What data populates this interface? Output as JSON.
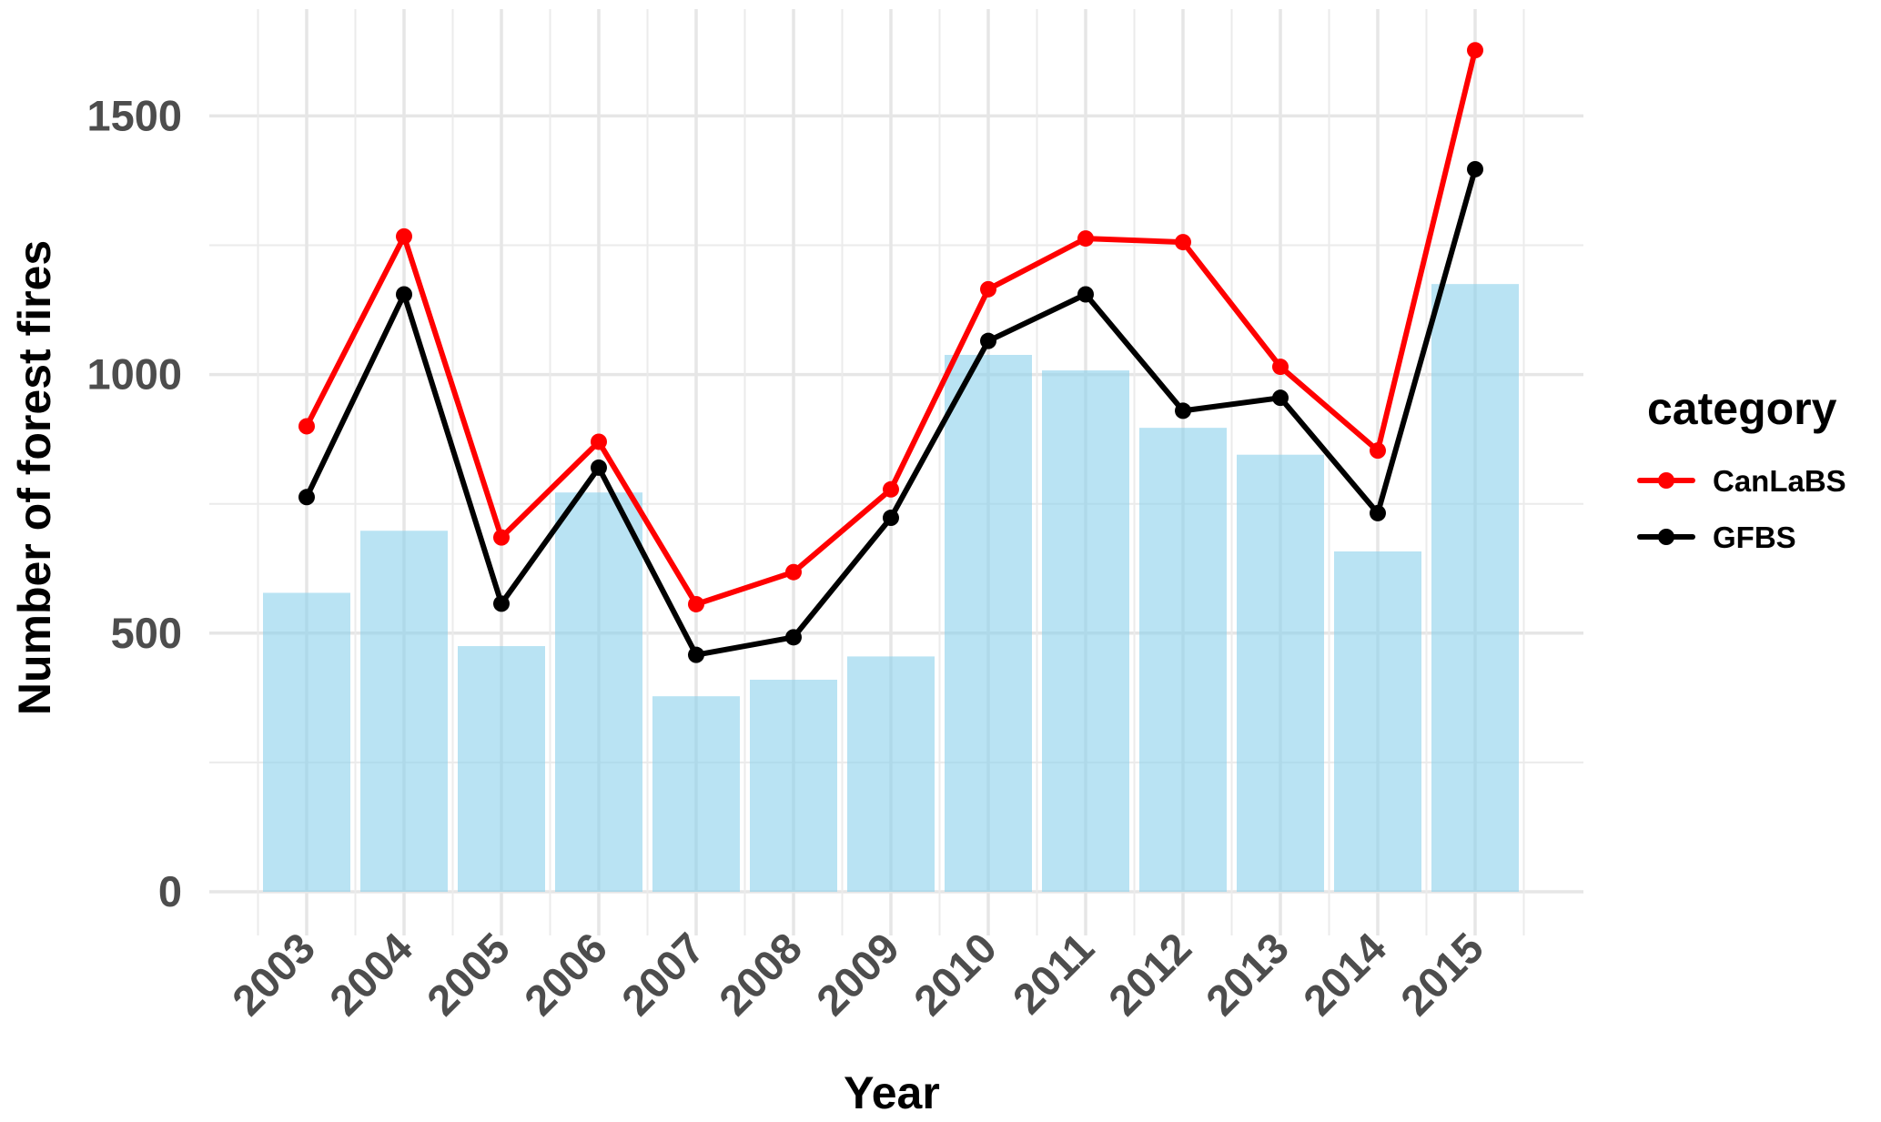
{
  "chart_data": {
    "type": "bar",
    "title": "",
    "xlabel": "Year",
    "ylabel": "Number of forest fires",
    "ylim": [
      -85,
      1700
    ],
    "yticks": [
      0,
      500,
      1000,
      1500
    ],
    "grid": true,
    "legend_position": "right",
    "legend_title": "category",
    "categories": [
      "2003",
      "2004",
      "2005",
      "2006",
      "2007",
      "2008",
      "2009",
      "2010",
      "2011",
      "2012",
      "2013",
      "2014",
      "2015"
    ],
    "bars": {
      "values": [
        578,
        698,
        475,
        772,
        378,
        410,
        455,
        1038,
        1008,
        897,
        845,
        658,
        1175
      ],
      "color": "#87ceeb"
    },
    "series": [
      {
        "name": "CanLaBS",
        "color": "#ff0000",
        "values": [
          900,
          1267,
          685,
          870,
          556,
          618,
          778,
          1165,
          1263,
          1256,
          1015,
          853,
          1627
        ]
      },
      {
        "name": "GFBS",
        "color": "#000000",
        "values": [
          763,
          1155,
          557,
          820,
          458,
          492,
          723,
          1065,
          1155,
          930,
          955,
          732,
          1397
        ]
      }
    ]
  }
}
